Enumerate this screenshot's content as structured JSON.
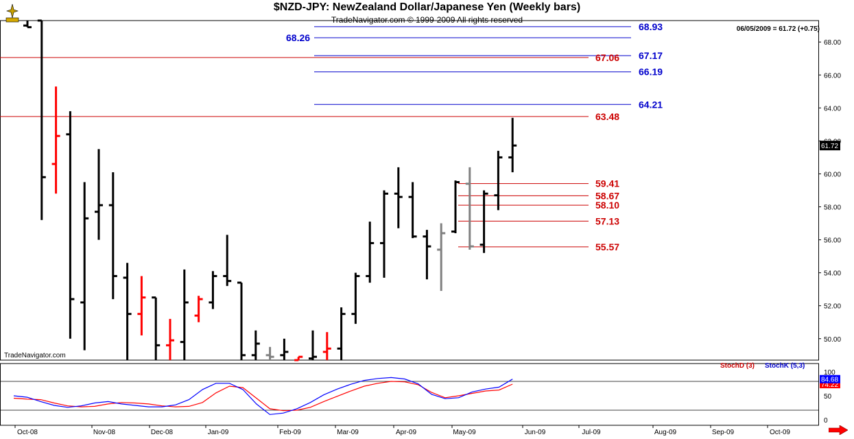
{
  "header": {
    "title": "$NZD-JPY:  NewZealand Dollar/Japanese Yen  (Weekly bars)",
    "subtitle": "TradeNavigator.com © 1999-2009 All rights reserved",
    "last_quote": "06/05/2009 = 61.72 (+0.75)",
    "watermark": "TradeNavigator.com"
  },
  "colors": {
    "up_bar": "#000000",
    "down_bar": "#ff0000",
    "inside_bar": "#808080",
    "blue_level": "#0000cc",
    "red_level": "#cc0000",
    "stoch_d": "#ff0000",
    "stoch_k": "#0000ff"
  },
  "chart_data": [
    {
      "type": "ohlc",
      "name": "$NZD-JPY weekly",
      "x_axis_labels": [
        "Oct-08",
        "Nov-08",
        "Dec-08",
        "Jan-09",
        "Feb-09",
        "Mar-09",
        "Apr-09",
        "May-09",
        "Jun-09",
        "Jul-09",
        "Aug-09",
        "Sep-09",
        "Oct-09"
      ],
      "y_ticks": [
        50.0,
        52.0,
        54.0,
        56.0,
        58.0,
        60.0,
        62.0,
        64.0,
        66.0,
        68.0
      ],
      "ylim": [
        48.7,
        69.3
      ],
      "last_price_label": "61.72",
      "bars": [
        {
          "o": 69.0,
          "h": 69.3,
          "l": 68.9,
          "c": 68.9,
          "color": "black"
        },
        {
          "o": 69.3,
          "h": 69.3,
          "l": 57.2,
          "c": 59.8,
          "color": "black"
        },
        {
          "o": 60.6,
          "h": 65.3,
          "l": 58.8,
          "c": 62.3,
          "color": "red"
        },
        {
          "o": 62.4,
          "h": 63.8,
          "l": 50.0,
          "c": 52.4,
          "color": "black"
        },
        {
          "o": 52.2,
          "h": 59.5,
          "l": 49.3,
          "c": 57.3,
          "color": "black"
        },
        {
          "o": 57.7,
          "h": 61.5,
          "l": 56.0,
          "c": 58.1,
          "color": "black"
        },
        {
          "o": 58.1,
          "h": 60.1,
          "l": 52.4,
          "c": 53.8,
          "color": "black"
        },
        {
          "o": 53.7,
          "h": 54.6,
          "l": 48.7,
          "c": 51.5,
          "color": "black"
        },
        {
          "o": 51.5,
          "h": 53.8,
          "l": 50.2,
          "c": 52.5,
          "color": "red"
        },
        {
          "o": 52.5,
          "h": 52.5,
          "l": 48.7,
          "c": 49.6,
          "color": "black"
        },
        {
          "o": 49.6,
          "h": 51.2,
          "l": 48.7,
          "c": 49.9,
          "color": "red"
        },
        {
          "o": 49.8,
          "h": 54.2,
          "l": 48.7,
          "c": 52.2,
          "color": "black"
        },
        {
          "o": 51.4,
          "h": 52.6,
          "l": 51.0,
          "c": 52.4,
          "color": "red"
        },
        {
          "o": 52.2,
          "h": 54.1,
          "l": 51.8,
          "c": 53.8,
          "color": "black"
        },
        {
          "o": 53.8,
          "h": 56.3,
          "l": 53.2,
          "c": 53.5,
          "color": "black"
        },
        {
          "o": 53.4,
          "h": 53.4,
          "l": 48.7,
          "c": 49.0,
          "color": "black"
        },
        {
          "o": 49.0,
          "h": 50.5,
          "l": 48.7,
          "c": 49.7,
          "color": "black"
        },
        {
          "o": 49.0,
          "h": 49.5,
          "l": 48.7,
          "c": 48.9,
          "color": "gray"
        },
        {
          "o": 49.0,
          "h": 50.0,
          "l": 48.7,
          "c": 49.2,
          "color": "black"
        },
        {
          "o": 48.7,
          "h": 48.9,
          "l": 48.7,
          "c": 48.9,
          "color": "red"
        },
        {
          "o": 48.8,
          "h": 50.5,
          "l": 48.7,
          "c": 48.9,
          "color": "black"
        },
        {
          "o": 49.2,
          "h": 50.4,
          "l": 48.7,
          "c": 49.4,
          "color": "red"
        },
        {
          "o": 49.4,
          "h": 51.9,
          "l": 48.7,
          "c": 51.5,
          "color": "black"
        },
        {
          "o": 51.5,
          "h": 54.0,
          "l": 50.9,
          "c": 53.8,
          "color": "black"
        },
        {
          "o": 53.8,
          "h": 57.1,
          "l": 53.4,
          "c": 55.8,
          "color": "black"
        },
        {
          "o": 55.8,
          "h": 59.0,
          "l": 53.7,
          "c": 58.8,
          "color": "black"
        },
        {
          "o": 58.8,
          "h": 60.4,
          "l": 56.7,
          "c": 58.6,
          "color": "black"
        },
        {
          "o": 58.6,
          "h": 59.5,
          "l": 56.1,
          "c": 56.2,
          "color": "black"
        },
        {
          "o": 56.2,
          "h": 56.6,
          "l": 53.6,
          "c": 55.6,
          "color": "black"
        },
        {
          "o": 55.4,
          "h": 57.0,
          "l": 52.9,
          "c": 56.4,
          "color": "gray"
        },
        {
          "o": 56.5,
          "h": 59.6,
          "l": 56.4,
          "c": 59.5,
          "color": "black"
        },
        {
          "o": 59.4,
          "h": 60.4,
          "l": 55.4,
          "c": 55.6,
          "color": "gray"
        },
        {
          "o": 55.7,
          "h": 59.0,
          "l": 55.2,
          "c": 58.8,
          "color": "black"
        },
        {
          "o": 58.7,
          "h": 61.4,
          "l": 57.8,
          "c": 61.0,
          "color": "black"
        },
        {
          "o": 61.0,
          "h": 63.4,
          "l": 60.1,
          "c": 61.72,
          "color": "black"
        }
      ],
      "levels": [
        {
          "value": 68.93,
          "label": "68.93",
          "color": "blue",
          "extent": "right"
        },
        {
          "value": 68.26,
          "label": "68.26",
          "color": "blue",
          "extent": "right",
          "label_side": "left"
        },
        {
          "value": 67.17,
          "label": "67.17",
          "color": "blue",
          "extent": "right"
        },
        {
          "value": 67.06,
          "label": "67.06",
          "color": "red",
          "extent": "full"
        },
        {
          "value": 66.19,
          "label": "66.19",
          "color": "blue",
          "extent": "right"
        },
        {
          "value": 64.21,
          "label": "64.21",
          "color": "blue",
          "extent": "right"
        },
        {
          "value": 63.48,
          "label": "63.48",
          "color": "red",
          "extent": "full"
        },
        {
          "value": 59.41,
          "label": "59.41",
          "color": "red",
          "extent": "short"
        },
        {
          "value": 58.67,
          "label": "58.67",
          "color": "red",
          "extent": "short"
        },
        {
          "value": 58.1,
          "label": "58.10",
          "color": "red",
          "extent": "short"
        },
        {
          "value": 57.13,
          "label": "57.13",
          "color": "red",
          "extent": "short"
        },
        {
          "value": 55.57,
          "label": "55.57",
          "color": "red",
          "extent": "short"
        }
      ]
    },
    {
      "type": "line",
      "name": "Stochastic",
      "y_ticks": [
        0,
        50,
        100
      ],
      "ylim": [
        0,
        100
      ],
      "guide_lines": [
        20,
        80
      ],
      "series": [
        {
          "name": "StochD (3)",
          "color": "red",
          "last_label": "74.22",
          "values": [
            45,
            43,
            42,
            35,
            29,
            27,
            28,
            33,
            36,
            35,
            33,
            29,
            27,
            28,
            36,
            56,
            70,
            67,
            45,
            23,
            19,
            20,
            26,
            38,
            49,
            60,
            70,
            76,
            80,
            79,
            73,
            57,
            46,
            50,
            55,
            60,
            62,
            74.22
          ]
        },
        {
          "name": "StochK (5,3)",
          "color": "blue",
          "last_label": "84.68",
          "values": [
            50,
            47,
            38,
            30,
            26,
            29,
            35,
            38,
            33,
            30,
            27,
            27,
            31,
            42,
            63,
            76,
            76,
            63,
            33,
            11,
            14,
            23,
            36,
            52,
            64,
            74,
            82,
            86,
            88,
            85,
            75,
            53,
            44,
            46,
            58,
            64,
            68,
            84.68
          ]
        }
      ]
    }
  ]
}
